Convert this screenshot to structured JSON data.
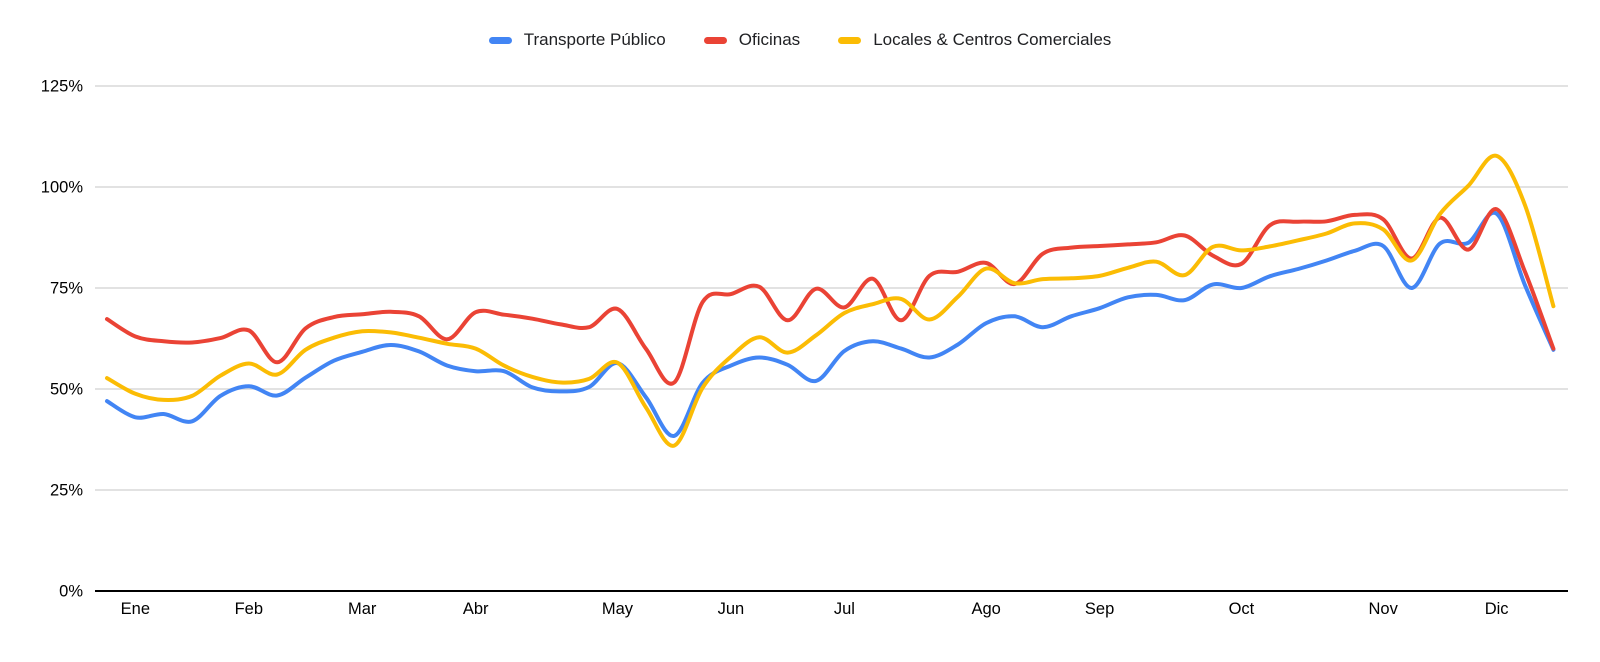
{
  "chart_data": {
    "type": "line",
    "title": "",
    "legend_position": "top",
    "grid": true,
    "x_axis": {
      "tick_labels": [
        "Ene",
        "Feb",
        "Mar",
        "Abr",
        "May",
        "Jun",
        "Jul",
        "Ago",
        "Sep",
        "Oct",
        "Nov",
        "Dic"
      ],
      "tick_week_index": [
        1,
        5,
        9,
        13,
        18,
        22,
        26,
        31,
        35,
        40,
        45,
        49
      ],
      "unit": "week"
    },
    "y_axis": {
      "tick_labels": [
        "0%",
        "25%",
        "50%",
        "75%",
        "100%",
        "125%"
      ],
      "min": 0,
      "max": 125,
      "step": 25,
      "unit": "%"
    },
    "style_colors": {
      "grid": "#d9d9d9",
      "axis": "#000000",
      "tick_text": "#000000",
      "legend_text": "#202124",
      "background": "#ffffff"
    },
    "series": [
      {
        "name": "Transporte Público",
        "color": "#4285F4",
        "values": [
          47,
          43,
          43.8,
          42,
          48.3,
          50.7,
          48.4,
          52.8,
          57,
          59.2,
          60.9,
          59.3,
          55.8,
          54.4,
          54.4,
          50.4,
          49.4,
          50.5,
          56.4,
          48,
          38.4,
          51.5,
          55.8,
          57.8,
          56,
          52,
          59.4,
          61.8,
          60,
          57.8,
          61,
          66.3,
          68,
          65.3,
          68,
          70,
          72.7,
          73.3,
          72,
          75.9,
          75,
          77.9,
          79.7,
          81.8,
          84.2,
          85.4,
          75,
          86,
          86.2,
          93.4,
          75.7,
          59.7
        ]
      },
      {
        "name": "Oficinas",
        "color": "#EA4335",
        "values": [
          67.3,
          63,
          61.8,
          61.5,
          62.6,
          64.5,
          56.6,
          65,
          67.8,
          68.5,
          69.1,
          68,
          62.3,
          69,
          68.4,
          67.4,
          66,
          65.3,
          69.8,
          60,
          51.6,
          71.5,
          73.5,
          75.3,
          67,
          74.8,
          70.2,
          77.3,
          67,
          78,
          79,
          81.2,
          76,
          83.5,
          85,
          85.4,
          85.8,
          86.3,
          88,
          83,
          81,
          90.5,
          91.4,
          91.5,
          93.1,
          92,
          82.3,
          92.4,
          84.5,
          94.5,
          79,
          60
        ]
      },
      {
        "name": "Locales & Centros Comerciales",
        "color": "#FBBC04",
        "values": [
          52.7,
          48.8,
          47.3,
          48.3,
          53.3,
          56.3,
          53.6,
          59.7,
          62.7,
          64.3,
          64,
          62.7,
          61.2,
          60,
          55.8,
          53,
          51.6,
          52.5,
          56.5,
          45.5,
          36,
          50.3,
          58,
          62.8,
          59,
          63.3,
          68.8,
          71,
          72.3,
          67.2,
          72.8,
          79.8,
          76.2,
          77.2,
          77.4,
          78,
          80,
          81.5,
          78.2,
          85.2,
          84.3,
          85.3,
          86.8,
          88.5,
          91,
          89.5,
          81.8,
          93.3,
          100.3,
          107.7,
          95.5,
          70.5
        ]
      }
    ]
  }
}
